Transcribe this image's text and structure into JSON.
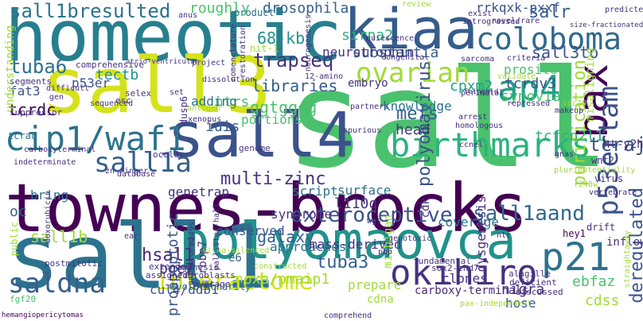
{
  "palette": {
    "dark_purple": "#440154",
    "indigo": "#46327e",
    "blue": "#365c8d",
    "steel": "#3b528b",
    "teal": "#277f8e",
    "cyan": "#1fa187",
    "green": "#4ac16d",
    "lime": "#a0da39",
    "yellow": "#d5e21a"
  },
  "words": [
    {
      "text": "sall",
      "color": "#4ac16d"
    },
    {
      "text": "townes-brocks",
      "color": "#440154"
    },
    {
      "text": "sall1",
      "color": "#2c728e"
    },
    {
      "text": "homeotic",
      "color": "#277f8e"
    },
    {
      "text": "sall3",
      "color": "#d5e21a"
    },
    {
      "text": "polyomaovca",
      "color": "#21918c"
    },
    {
      "text": "sall4",
      "color": "#3b528b"
    },
    {
      "text": "kiaa",
      "color": "#365c8d"
    },
    {
      "text": "coloboma",
      "color": "#31688e"
    },
    {
      "text": "cip1/waf1",
      "color": "#2c728e"
    },
    {
      "text": "ap4",
      "color": "#1fa187"
    },
    {
      "text": "birthmarks",
      "color": "#2db27d"
    },
    {
      "text": "interactome",
      "color": "#d5e21a"
    },
    {
      "text": "ovarian",
      "color": "#a0da39"
    },
    {
      "text": "p21",
      "color": "#2c728e"
    },
    {
      "text": "okihiro",
      "color": "#46327e"
    },
    {
      "text": "exteroceptive",
      "color": "#3b528b"
    },
    {
      "text": "saldna",
      "color": "#355f8d"
    },
    {
      "text": "sall1a",
      "color": "#355f8d"
    },
    {
      "text": "bax",
      "color": "#440154"
    },
    {
      "text": "p53ertam",
      "color": "#3b528b"
    },
    {
      "text": "trapseq",
      "color": "#46327e"
    },
    {
      "text": "sall1bresulted",
      "color": "#2c728e"
    },
    {
      "text": "tuba6",
      "color": "#2c728e"
    },
    {
      "text": "tuba3",
      "color": "#355f8d"
    },
    {
      "text": "sall1aand",
      "color": "#31688e"
    },
    {
      "text": "polyomavirus",
      "color": "#3b528b"
    },
    {
      "text": "multi-zinc",
      "color": "#46327e"
    },
    {
      "text": "sall3to",
      "color": "#3b528b"
    },
    {
      "text": "rrkqxk-pxxf",
      "color": "#3b528b"
    },
    {
      "text": "drosophila",
      "color": "#355f8d"
    },
    {
      "text": "68-kb",
      "color": "#21918c"
    },
    {
      "text": "salr",
      "color": "#355f8d"
    },
    {
      "text": "libraries",
      "color": "#355f8d"
    },
    {
      "text": "tcraj",
      "color": "#3b528b"
    },
    {
      "text": "tcrdc",
      "color": "#440154"
    },
    {
      "text": "sall1b",
      "color": "#a0da39"
    },
    {
      "text": "hsal1",
      "color": "#482878"
    },
    {
      "text": "galaxy",
      "color": "#355f8d"
    },
    {
      "text": "tectb",
      "color": "#21918c"
    },
    {
      "text": "ggtgggg",
      "color": "#4ac16d"
    },
    {
      "text": "mefs",
      "color": "#355f8d"
    },
    {
      "text": "head",
      "color": "#46327e"
    },
    {
      "text": "deregulated",
      "color": "#3b528b"
    },
    {
      "text": "purification",
      "color": "#a0da39"
    },
    {
      "text": "tcfcp2l1",
      "color": "#2db27d"
    },
    {
      "text": "tcrdv3",
      "color": "#3b528b"
    },
    {
      "text": "synovial",
      "color": "#4ac16d"
    },
    {
      "text": "substantia",
      "color": "#355f8d"
    },
    {
      "text": "neurotrophin",
      "color": "#46327e"
    },
    {
      "text": "sirna2",
      "color": "#2db27d"
    },
    {
      "text": "ntrs",
      "color": "#4ac16d"
    },
    {
      "text": "iuis",
      "color": "#355f8d"
    },
    {
      "text": "adding",
      "color": "#2c728e"
    },
    {
      "text": "p53er",
      "color": "#3b528b"
    },
    {
      "text": "fat3",
      "color": "#3b528b"
    },
    {
      "text": "knowledge",
      "color": "#2c728e"
    },
    {
      "text": "cpxm2",
      "color": "#1fa187"
    },
    {
      "text": "prosite",
      "color": "#4ac16d"
    },
    {
      "text": "portions",
      "color": "#4ac16d"
    },
    {
      "text": "genetrap",
      "color": "#46327e"
    },
    {
      "text": "surface",
      "color": "#2c728e"
    },
    {
      "text": "l110q",
      "color": "#46327e"
    },
    {
      "text": "script",
      "color": "#2c728e"
    },
    {
      "text": "syndrome",
      "color": "#46327e"
    },
    {
      "text": "coverage",
      "color": "#2c728e"
    },
    {
      "text": "conserved",
      "color": "#3b528b"
    },
    {
      "text": "approaches",
      "color": "#2c728e"
    },
    {
      "text": "mass-derived",
      "color": "#46327e"
    },
    {
      "text": "noxa/pmaip1",
      "color": "#a0da39"
    },
    {
      "text": "prepare",
      "color": "#a0da39"
    },
    {
      "text": "carboxy-terminals",
      "color": "#482878"
    },
    {
      "text": "nigra",
      "color": "#46327e"
    },
    {
      "text": "hose",
      "color": "#3b528b"
    },
    {
      "text": "clones",
      "color": "#46327e"
    },
    {
      "text": "ebfaz",
      "color": "#4ac16d"
    },
    {
      "text": "cdss",
      "color": "#a0da39"
    },
    {
      "text": "cdna",
      "color": "#a0da39"
    },
    {
      "text": "pgc7",
      "color": "#46327e"
    },
    {
      "text": "proapoptotic",
      "color": "#3b528b"
    },
    {
      "text": "e6",
      "color": "#355f8d"
    },
    {
      "text": "cul4/ddb1",
      "color": "#3b528b"
    },
    {
      "text": "bring",
      "color": "#2c728e"
    },
    {
      "text": "oc",
      "color": "#355f8d"
    },
    {
      "text": "roughly",
      "color": "#4ac16d"
    },
    {
      "text": "product",
      "color": "#2c728e"
    },
    {
      "text": "embryo",
      "color": "#46327e"
    },
    {
      "text": "dysgenesis",
      "color": "#46327e"
    },
    {
      "text": "michigan",
      "color": "#a0da39"
    },
    {
      "text": "ht-y2h",
      "color": "#46327e"
    },
    {
      "text": "misaligning",
      "color": "#a0da39"
    },
    {
      "text": "hemangiopericytomas",
      "color": "#440154"
    },
    {
      "text": "understanding",
      "color": "#a0da39"
    },
    {
      "text": "tcrac",
      "color": "#2c728e"
    },
    {
      "text": "evolutionarily",
      "color": "#2c728e"
    },
    {
      "text": "hey1",
      "color": "#440154"
    },
    {
      "text": "inflow",
      "color": "#46327e"
    },
    {
      "text": "drift",
      "color": "#46327e"
    },
    {
      "text": "wnt2",
      "color": "#46327e"
    },
    {
      "text": "rbbp7",
      "color": "#46327e"
    },
    {
      "text": "dusp6",
      "color": "#46327e"
    },
    {
      "text": "genome",
      "color": "#46327e"
    },
    {
      "text": "comprehensive",
      "color": "#46327e"
    },
    {
      "text": "segments",
      "color": "#46327e"
    },
    {
      "text": "suppressor",
      "color": "#46327e"
    },
    {
      "text": "doxorubicin",
      "color": "#46327e"
    },
    {
      "text": "postmitotic",
      "color": "#46327e"
    },
    {
      "text": "fgf20",
      "color": "#4ac16d"
    },
    {
      "text": "public",
      "color": "#a0da39"
    },
    {
      "text": "agenesis",
      "color": "#46327e"
    },
    {
      "text": "fibroblasts",
      "color": "#46327e"
    },
    {
      "text": "extended",
      "color": "#46327e"
    },
    {
      "text": "assigned",
      "color": "#46327e"
    },
    {
      "text": "average",
      "color": "#46327e"
    },
    {
      "text": "comprehend",
      "color": "#46327e"
    },
    {
      "text": "discussed",
      "color": "#46327e"
    },
    {
      "text": "fundamental",
      "color": "#46327e"
    },
    {
      "text": "sox2-chd7",
      "color": "#46327e"
    },
    {
      "text": "alagille",
      "color": "#46327e"
    },
    {
      "text": "deficient",
      "color": "#46327e"
    },
    {
      "text": "cdk",
      "color": "#46327e"
    },
    {
      "text": "quiescence",
      "color": "#46327e"
    },
    {
      "text": "congenital",
      "color": "#46327e"
    },
    {
      "text": "sarcoma",
      "color": "#46327e"
    },
    {
      "text": "criteria",
      "color": "#46327e"
    },
    {
      "text": "nit-1",
      "color": "#a0da39"
    },
    {
      "text": "project",
      "color": "#46327e"
    },
    {
      "text": "dissolution",
      "color": "#46327e"
    },
    {
      "text": "intrograssed",
      "color": "#46327e"
    },
    {
      "text": "novel/rare",
      "color": "#46327e"
    },
    {
      "text": "exist",
      "color": "#46327e"
    },
    {
      "text": "review",
      "color": "#a0da39"
    },
    {
      "text": "size-fractionated",
      "color": "#46327e"
    },
    {
      "text": "predicted",
      "color": "#46327e"
    },
    {
      "text": "partners",
      "color": "#46327e"
    },
    {
      "text": "selex",
      "color": "#46327e"
    },
    {
      "text": "esc",
      "color": "#46327e"
    },
    {
      "text": "sequenced",
      "color": "#46327e"
    },
    {
      "text": "set",
      "color": "#46327e"
    },
    {
      "text": "ocular",
      "color": "#46327e"
    },
    {
      "text": "database",
      "color": "#46327e"
    },
    {
      "text": "indeterminate",
      "color": "#46327e"
    },
    {
      "text": "zn-finger",
      "color": "#46327e"
    },
    {
      "text": "spurious",
      "color": "#46327e"
    },
    {
      "text": "genotoxic",
      "color": "#46327e"
    },
    {
      "text": "arrest",
      "color": "#46327e"
    },
    {
      "text": "homologous",
      "color": "#46327e"
    },
    {
      "text": "ccnel",
      "color": "#46327e"
    },
    {
      "text": "perinatal",
      "color": "#46327e"
    },
    {
      "text": "repressed",
      "color": "#46327e"
    },
    {
      "text": "feingold",
      "color": "#46327e"
    },
    {
      "text": "validate",
      "color": "#a0da39"
    },
    {
      "text": "makeup",
      "color": "#46327e"
    },
    {
      "text": "pluripotentiality",
      "color": "#a0da39"
    },
    {
      "text": "vertebrate",
      "color": "#46327e"
    },
    {
      "text": "r248w",
      "color": "#a0da39"
    },
    {
      "text": "virus",
      "color": "#46327e"
    },
    {
      "text": "gnas",
      "color": "#46327e"
    },
    {
      "text": "ntr",
      "color": "#46327e"
    },
    {
      "text": "wgs",
      "color": "#46327e"
    },
    {
      "text": "pbp",
      "color": "#46327e"
    },
    {
      "text": "r249s",
      "color": "#46327e"
    },
    {
      "text": "sirna-silenced",
      "color": "#a0da39"
    },
    {
      "text": "constructed",
      "color": "#a0da39"
    },
    {
      "text": "unexplored",
      "color": "#46327e"
    },
    {
      "text": "antigen",
      "color": "#a0da39"
    },
    {
      "text": "xenopus",
      "color": "#46327e"
    },
    {
      "text": "gen",
      "color": "#46327e"
    },
    {
      "text": "difficult",
      "color": "#46327e"
    },
    {
      "text": "12-amino",
      "color": "#46327e"
    },
    {
      "text": "nomenclature",
      "color": "#46327e"
    },
    {
      "text": "restoration",
      "color": "#46327e"
    },
    {
      "text": "neurogenesis",
      "color": "#46327e"
    },
    {
      "text": "anus",
      "color": "#46327e"
    },
    {
      "text": "atrio-ventricular",
      "color": "#46327e"
    },
    {
      "text": "pallister-hall",
      "color": "#46327e"
    },
    {
      "text": "carboxyterminal",
      "color": "#46327e"
    },
    {
      "text": "ear",
      "color": "#46327e"
    },
    {
      "text": "straightaway",
      "color": "#a0da39"
    },
    {
      "text": "pax-independent",
      "color": "#a0da39"
    },
    {
      "text": "cdc20",
      "color": "#a0da39"
    }
  ]
}
